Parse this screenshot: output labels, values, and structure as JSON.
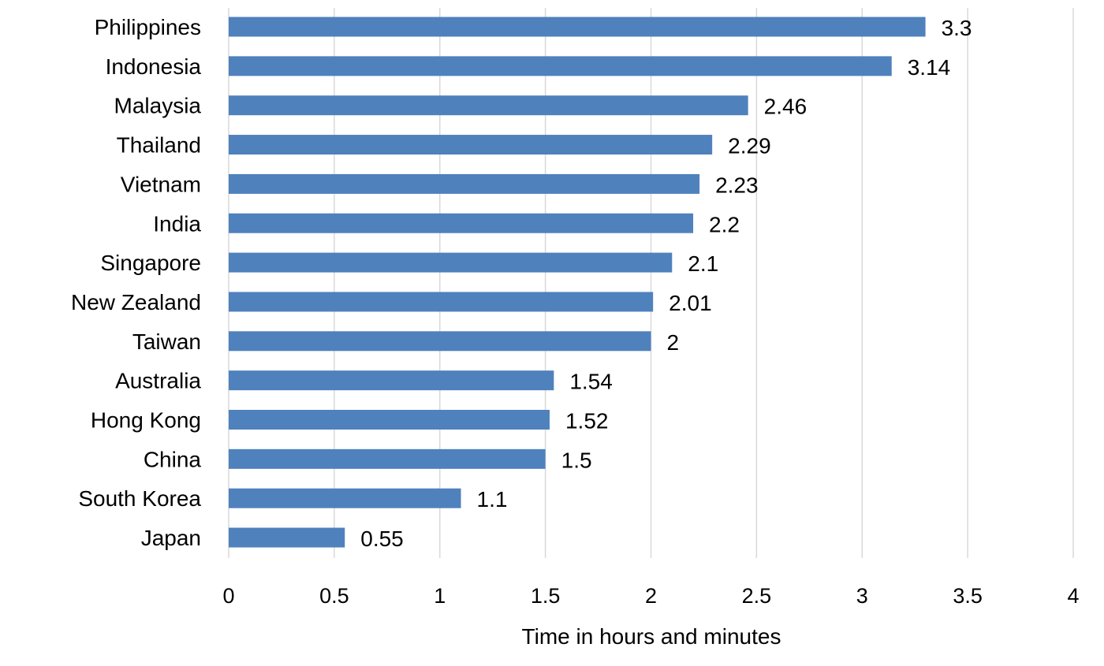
{
  "chart_data": {
    "type": "bar",
    "orientation": "horizontal",
    "categories": [
      "Philippines",
      "Indonesia",
      "Malaysia",
      "Thailand",
      "Vietnam",
      "India",
      "Singapore",
      "New Zealand",
      "Taiwan",
      "Australia",
      "Hong Kong",
      "China",
      "South Korea",
      "Japan"
    ],
    "values": [
      3.3,
      3.14,
      2.46,
      2.29,
      2.23,
      2.2,
      2.1,
      2.01,
      2,
      1.54,
      1.52,
      1.5,
      1.1,
      0.55
    ],
    "value_labels": [
      "3.3",
      "3.14",
      "2.46",
      "2.29",
      "2.23",
      "2.2",
      "2.1",
      "2.01",
      "2",
      "1.54",
      "1.52",
      "1.5",
      "1.1",
      "0.55"
    ],
    "xlim": [
      0,
      4
    ],
    "x_ticks": [
      "0",
      "0.5",
      "1",
      "1.5",
      "2",
      "2.5",
      "3",
      "3.5",
      "4"
    ],
    "xlabel": "Time in hours and minutes",
    "ylabel": "",
    "title": "",
    "grid": true,
    "legend": "none",
    "colors": {
      "bar": "#4f81bd",
      "grid": "#d9d9d9"
    }
  }
}
